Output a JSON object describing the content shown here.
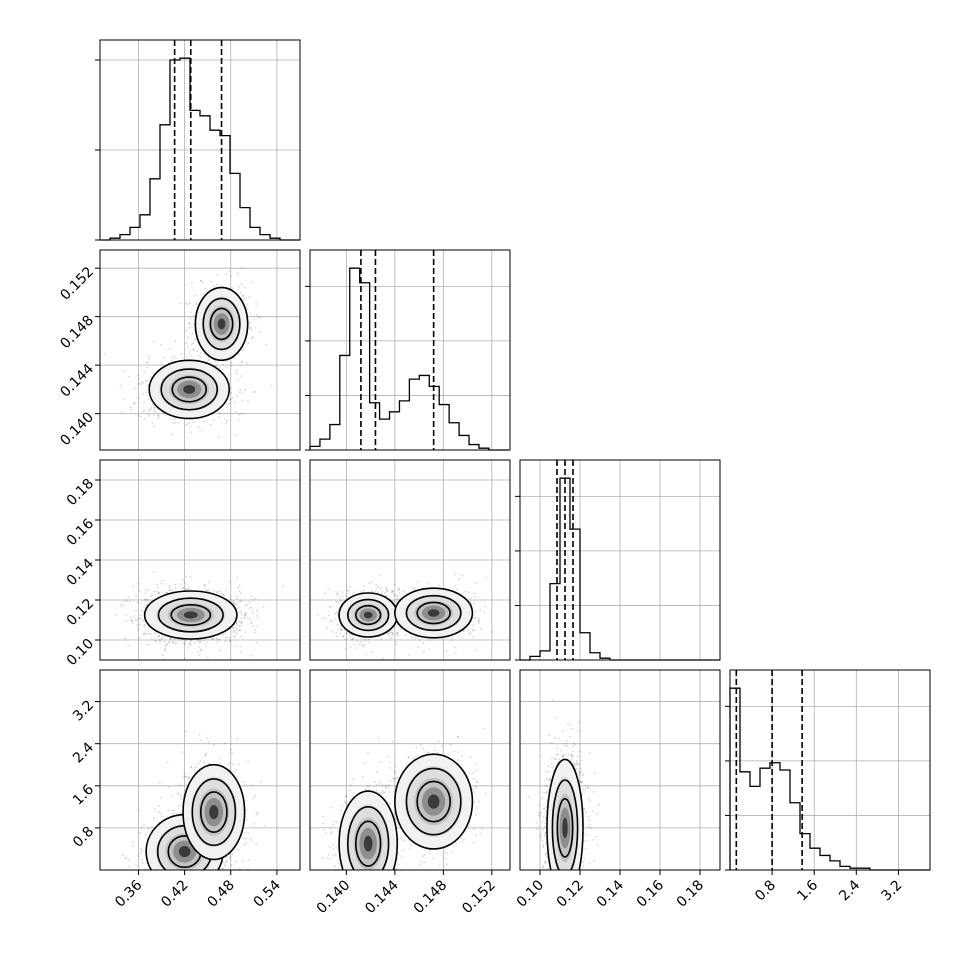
{
  "chart_data": {
    "type": "corner",
    "grid": true,
    "parameters": [
      {
        "key": "p0",
        "label": "",
        "range": [
          0.31,
          0.57
        ],
        "ticks": [
          0.36,
          0.42,
          0.48,
          0.54
        ],
        "tick_labels": [
          "0.36",
          "0.42",
          "0.48",
          "0.54"
        ],
        "quantiles": [
          0.407,
          0.428,
          0.468
        ],
        "histogram": {
          "edges": [
            0.31,
            0.323,
            0.336,
            0.349,
            0.362,
            0.375,
            0.388,
            0.401,
            0.414,
            0.427,
            0.44,
            0.453,
            0.466,
            0.479,
            0.492,
            0.505,
            0.518,
            0.531,
            0.544,
            0.557,
            0.57
          ],
          "counts": [
            0,
            1,
            3,
            7,
            14,
            34,
            64,
            100,
            101,
            72,
            69,
            61,
            58,
            37,
            18,
            7,
            3,
            1,
            0,
            0
          ]
        },
        "hist_ticks": [
          0,
          50,
          100
        ]
      },
      {
        "key": "p1",
        "label": "",
        "range": [
          0.137,
          0.1535
        ],
        "ticks": [
          0.14,
          0.144,
          0.148,
          0.152
        ],
        "tick_labels": [
          "0.140",
          "0.144",
          "0.148",
          "0.152"
        ],
        "quantiles": [
          0.1412,
          0.1424,
          0.1472
        ],
        "histogram": {
          "edges": [
            0.137,
            0.13782,
            0.13864,
            0.13946,
            0.14028,
            0.1411,
            0.14192,
            0.14274,
            0.14356,
            0.14438,
            0.1452,
            0.14602,
            0.14684,
            0.14766,
            0.14848,
            0.1493,
            0.15012,
            0.15094,
            0.15176,
            0.15258,
            0.1534
          ],
          "counts": [
            2,
            6,
            14,
            52,
            100,
            92,
            26,
            17,
            21,
            27,
            39,
            41,
            35,
            25,
            15,
            8,
            3,
            1,
            0,
            0
          ]
        },
        "hist_ticks": [
          0,
          30,
          60,
          90
        ]
      },
      {
        "key": "p2",
        "label": "",
        "range": [
          0.09,
          0.19
        ],
        "ticks": [
          0.1,
          0.12,
          0.14,
          0.16,
          0.18
        ],
        "tick_labels": [
          "0.10",
          "0.12",
          "0.14",
          "0.16",
          "0.18"
        ],
        "quantiles": [
          0.1085,
          0.1125,
          0.1165
        ],
        "histogram": {
          "edges": [
            0.09,
            0.095,
            0.1,
            0.105,
            0.11,
            0.115,
            0.12,
            0.125,
            0.13,
            0.135,
            0.14,
            0.145,
            0.15,
            0.155,
            0.16,
            0.165,
            0.17,
            0.175,
            0.18,
            0.185,
            0.19
          ],
          "counts": [
            0,
            2,
            5,
            42,
            100,
            72,
            15,
            4,
            1,
            0,
            0,
            0,
            0,
            0,
            0,
            0,
            0,
            0,
            0,
            0
          ]
        },
        "hist_ticks": [
          0,
          30,
          60,
          90
        ]
      },
      {
        "key": "p3",
        "label": "",
        "range": [
          0.0,
          3.8
        ],
        "ticks": [
          0.8,
          1.6,
          2.4,
          3.2
        ],
        "tick_labels": [
          "0.8",
          "1.6",
          "2.4",
          "3.2"
        ],
        "quantiles": [
          0.12,
          0.8,
          1.37
        ],
        "histogram": {
          "edges": [
            0.0,
            0.19,
            0.38,
            0.57,
            0.76,
            0.95,
            1.14,
            1.33,
            1.52,
            1.71,
            1.9,
            2.09,
            2.28,
            2.47,
            2.66,
            2.85,
            3.04,
            3.23,
            3.42,
            3.61,
            3.8
          ],
          "counts": [
            100,
            54,
            46,
            56,
            59,
            55,
            37,
            20,
            12,
            8,
            5,
            2,
            1,
            1,
            0,
            0,
            0,
            0,
            0,
            0
          ]
        },
        "hist_ticks": [
          0,
          30,
          60,
          90
        ]
      }
    ],
    "pairs": [
      {
        "row": 1,
        "col": 0,
        "modes": [
          {
            "cx": 0.426,
            "cy": 0.142,
            "sx": 0.026,
            "sy": 0.0012,
            "w": 0.6
          },
          {
            "cx": 0.468,
            "cy": 0.1474,
            "sx": 0.017,
            "sy": 0.0015,
            "w": 0.4
          }
        ]
      },
      {
        "row": 2,
        "col": 0,
        "modes": [
          {
            "cx": 0.428,
            "cy": 0.1125,
            "sx": 0.03,
            "sy": 0.006,
            "w": 1.0
          }
        ]
      },
      {
        "row": 2,
        "col": 1,
        "modes": [
          {
            "cx": 0.1418,
            "cy": 0.1125,
            "sx": 0.0012,
            "sy": 0.0055,
            "w": 0.6
          },
          {
            "cx": 0.1472,
            "cy": 0.1135,
            "sx": 0.0016,
            "sy": 0.0062,
            "w": 0.4
          }
        ]
      },
      {
        "row": 3,
        "col": 0,
        "modes": [
          {
            "cx": 0.42,
            "cy": 0.35,
            "sx": 0.025,
            "sy": 0.35,
            "w": 0.5
          },
          {
            "cx": 0.458,
            "cy": 1.1,
            "sx": 0.02,
            "sy": 0.45,
            "w": 0.5
          }
        ]
      },
      {
        "row": 3,
        "col": 1,
        "modes": [
          {
            "cx": 0.1418,
            "cy": 0.5,
            "sx": 0.0012,
            "sy": 0.5,
            "w": 0.6
          },
          {
            "cx": 0.1472,
            "cy": 1.3,
            "sx": 0.0016,
            "sy": 0.45,
            "w": 0.4
          }
        ]
      },
      {
        "row": 3,
        "col": 2,
        "modes": [
          {
            "cx": 0.1125,
            "cy": 0.8,
            "sx": 0.0045,
            "sy": 0.65,
            "w": 1.0
          }
        ]
      }
    ]
  }
}
